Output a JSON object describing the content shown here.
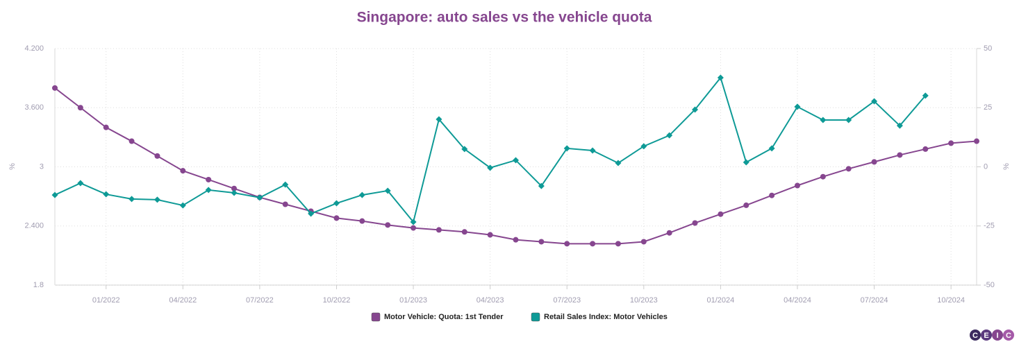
{
  "chart_data": {
    "type": "line",
    "title": "Singapore: auto sales vs the vehicle quota",
    "y_label": "%",
    "y2_label": "%",
    "categories": [
      null,
      null,
      "01/2022",
      null,
      null,
      "04/2022",
      null,
      null,
      "07/2022",
      null,
      null,
      "10/2022",
      null,
      null,
      "01/2023",
      null,
      null,
      "04/2023",
      null,
      null,
      "07/2023",
      null,
      null,
      "10/2023",
      null,
      null,
      "01/2024",
      null,
      null,
      "04/2024",
      null,
      null,
      "07/2024",
      null,
      null,
      "10/2024",
      null
    ],
    "series": [
      {
        "name": "Motor Vehicle: Quota: 1st Tender",
        "color": "#86468f",
        "axis": "y",
        "marker": "circle",
        "values": [
          3.8,
          3.6,
          3.4,
          3.26,
          3.11,
          2.96,
          2.87,
          2.78,
          2.69,
          2.62,
          2.55,
          2.48,
          2.45,
          2.41,
          2.38,
          2.36,
          2.34,
          2.31,
          2.26,
          2.24,
          2.22,
          2.22,
          2.22,
          2.24,
          2.33,
          2.43,
          2.52,
          2.61,
          2.71,
          2.81,
          2.9,
          2.98,
          3.05,
          3.12,
          3.18,
          3.24,
          3.26
        ]
      },
      {
        "name": "Retail Sales Index: Motor Vehicles",
        "color": "#0e9a96",
        "axis": "y2",
        "marker": "diamond",
        "values": [
          -11.9,
          -6.9,
          -11.6,
          -13.6,
          -13.9,
          -16.3,
          -9.8,
          -11.0,
          -13.0,
          -7.5,
          -19.8,
          -15.4,
          -11.9,
          -10.1,
          -23.3,
          20.1,
          7.5,
          -0.4,
          2.8,
          -8.1,
          7.8,
          6.9,
          1.6,
          8.7,
          13.3,
          24.2,
          37.7,
          1.9,
          7.8,
          25.4,
          19.8,
          19.8,
          27.7,
          17.4,
          30.1,
          null,
          null
        ]
      }
    ],
    "ylim": [
      1.8,
      4.2
    ],
    "yticks": [
      1.8,
      {
        "value": 2.4,
        "label": "2.400"
      },
      3,
      {
        "value": 3.6,
        "label": "3.600"
      },
      {
        "value": 4.2,
        "label": "4.200"
      }
    ],
    "y2lim": [
      -50,
      50
    ],
    "y2ticks": [
      -50,
      -25,
      0,
      25,
      50
    ],
    "grid": true,
    "legend": "bottom",
    "logo": [
      "C",
      "E",
      "I",
      "C"
    ]
  }
}
